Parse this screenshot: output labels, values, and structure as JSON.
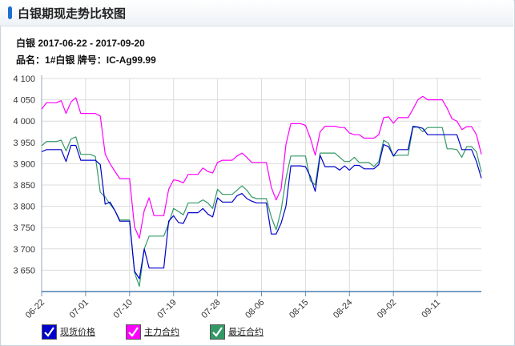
{
  "header": {
    "title": "白银期现走势比较图"
  },
  "info": {
    "line1_prefix": "白银",
    "date_range": "2017-06-22 - 2017-09-20",
    "product_label": "品名：",
    "product": "1#白银",
    "brand_label": "牌号：",
    "brand": "IC-Ag99.99"
  },
  "chart_data": {
    "type": "line",
    "ylim": [
      3600,
      4100
    ],
    "yticks": [
      3650,
      3700,
      3750,
      3800,
      3850,
      3900,
      3950,
      4000,
      4050,
      4100
    ],
    "ytick_labels": [
      "3 650",
      "3 700",
      "3 750",
      "3 800",
      "3 850",
      "3 900",
      "3 950",
      "4 000",
      "4 050",
      "4 100"
    ],
    "x_labels": [
      "06-22",
      "07-01",
      "07-10",
      "07-19",
      "07-28",
      "08-06",
      "08-15",
      "08-24",
      "09-02",
      "09-11"
    ],
    "x_label_positions": [
      0,
      9,
      18,
      27,
      36,
      45,
      54,
      63,
      72,
      81
    ],
    "x": [
      "06-22",
      "06-23",
      "06-24",
      "06-25",
      "06-26",
      "06-27",
      "06-28",
      "06-29",
      "06-30",
      "07-01",
      "07-02",
      "07-03",
      "07-04",
      "07-05",
      "07-06",
      "07-07",
      "07-08",
      "07-09",
      "07-10",
      "07-11",
      "07-12",
      "07-13",
      "07-14",
      "07-15",
      "07-16",
      "07-17",
      "07-18",
      "07-19",
      "07-20",
      "07-21",
      "07-22",
      "07-23",
      "07-24",
      "07-25",
      "07-26",
      "07-27",
      "07-28",
      "07-29",
      "07-30",
      "07-31",
      "08-01",
      "08-02",
      "08-03",
      "08-04",
      "08-05",
      "08-06",
      "08-07",
      "08-08",
      "08-09",
      "08-10",
      "08-11",
      "08-12",
      "08-13",
      "08-14",
      "08-15",
      "08-16",
      "08-17",
      "08-18",
      "08-19",
      "08-20",
      "08-21",
      "08-22",
      "08-23",
      "08-24",
      "08-25",
      "08-26",
      "08-27",
      "08-28",
      "08-29",
      "08-30",
      "08-31",
      "09-01",
      "09-02",
      "09-03",
      "09-04",
      "09-05",
      "09-06",
      "09-07",
      "09-08",
      "09-09",
      "09-10",
      "09-11",
      "09-12",
      "09-13",
      "09-14",
      "09-15",
      "09-16",
      "09-17",
      "09-18",
      "09-19",
      "09-20"
    ],
    "series": [
      {
        "name": "现货价格",
        "color": "#0000cc",
        "values": [
          3928,
          3933,
          3933,
          3933,
          3933,
          3905,
          3943,
          3943,
          3908,
          3908,
          3908,
          3908,
          3898,
          3805,
          3810,
          3790,
          3765,
          3765,
          3765,
          3648,
          3630,
          3700,
          3655,
          3655,
          3655,
          3655,
          3765,
          3778,
          3762,
          3760,
          3785,
          3785,
          3785,
          3795,
          3782,
          3775,
          3820,
          3810,
          3810,
          3810,
          3825,
          3830,
          3818,
          3812,
          3808,
          3808,
          3808,
          3735,
          3735,
          3760,
          3800,
          3895,
          3895,
          3895,
          3893,
          3870,
          3835,
          3920,
          3893,
          3893,
          3893,
          3885,
          3895,
          3885,
          3896,
          3896,
          3888,
          3888,
          3888,
          3898,
          3945,
          3940,
          3918,
          3933,
          3933,
          3933,
          3988,
          3986,
          3983,
          3968,
          3968,
          3968,
          3968,
          3968,
          3968,
          3968,
          3933,
          3933,
          3933,
          3905,
          3866
        ]
      },
      {
        "name": "主力合约",
        "color": "#ff00ff",
        "values": [
          4028,
          4043,
          4043,
          4043,
          4048,
          4018,
          4045,
          4055,
          4018,
          4018,
          4018,
          4018,
          4012,
          3923,
          3900,
          3882,
          3865,
          3865,
          3865,
          3752,
          3725,
          3790,
          3820,
          3778,
          3778,
          3778,
          3840,
          3862,
          3860,
          3855,
          3875,
          3875,
          3875,
          3890,
          3882,
          3878,
          3903,
          3908,
          3908,
          3908,
          3918,
          3925,
          3915,
          3903,
          3903,
          3903,
          3903,
          3845,
          3815,
          3840,
          3945,
          3994,
          3994,
          3994,
          3990,
          3960,
          3920,
          3975,
          3988,
          3988,
          3988,
          3985,
          3985,
          3972,
          3968,
          3968,
          3960,
          3960,
          3960,
          3968,
          4008,
          4010,
          3995,
          4008,
          4008,
          4008,
          4028,
          4050,
          4058,
          4050,
          4050,
          4050,
          4050,
          4030,
          4005,
          4000,
          3980,
          3987,
          3987,
          3968,
          3922
        ]
      },
      {
        "name": "最近合约",
        "color": "#339966",
        "values": [
          3942,
          3952,
          3952,
          3952,
          3955,
          3930,
          3958,
          3963,
          3922,
          3922,
          3922,
          3917,
          3833,
          3822,
          3805,
          3790,
          3768,
          3768,
          3768,
          3645,
          3612,
          3700,
          3730,
          3730,
          3730,
          3730,
          3760,
          3795,
          3788,
          3780,
          3808,
          3808,
          3808,
          3815,
          3808,
          3795,
          3840,
          3828,
          3828,
          3828,
          3838,
          3848,
          3838,
          3822,
          3818,
          3818,
          3818,
          3775,
          3745,
          3790,
          3865,
          3918,
          3918,
          3918,
          3918,
          3860,
          3850,
          3925,
          3925,
          3925,
          3925,
          3915,
          3905,
          3905,
          3915,
          3903,
          3903,
          3903,
          3893,
          3905,
          3955,
          3948,
          3918,
          3920,
          3920,
          3920,
          3985,
          3986,
          3975,
          3985,
          3985,
          3985,
          3985,
          3935,
          3935,
          3933,
          3915,
          3940,
          3940,
          3928,
          3880
        ]
      }
    ],
    "legend": [
      {
        "label": "现货价格",
        "color": "#0000cc",
        "check_bg": "#0000cc"
      },
      {
        "label": "主力合约",
        "color": "#ff00ff",
        "check_bg": "#ff00ff"
      },
      {
        "label": "最近合约",
        "color": "#339966",
        "check_bg": "#339966"
      }
    ],
    "grid": true,
    "legend_position": "bottom-left"
  }
}
